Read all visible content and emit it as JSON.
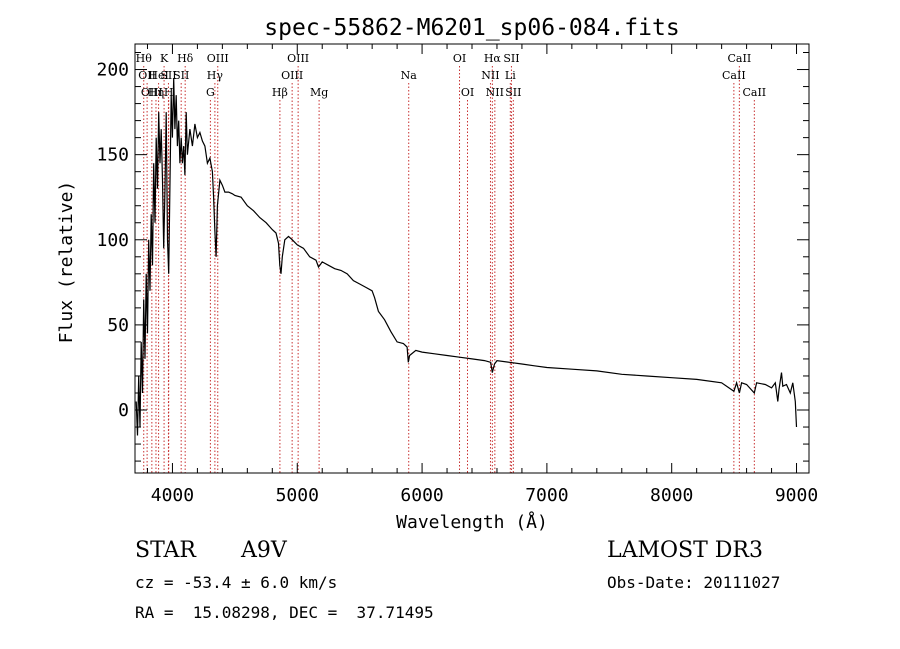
{
  "chart_data": {
    "type": "line",
    "title": "spec-55862-M6201_sp06-084.fits",
    "xlabel": "Wavelength (Å)",
    "ylabel": "Flux (relative)",
    "xlim": [
      3700,
      9100
    ],
    "ylim": [
      -37,
      215
    ],
    "xticks": [
      4000,
      5000,
      6000,
      7000,
      8000,
      9000
    ],
    "yticks": [
      0,
      50,
      100,
      150,
      200
    ],
    "x_minor_step": 200,
    "y_minor_step": 10,
    "grid": false,
    "line_color": "#000000",
    "marker_color": "#c83232",
    "series": [
      {
        "name": "spectrum",
        "points": [
          [
            3710,
            5
          ],
          [
            3720,
            -15
          ],
          [
            3730,
            20
          ],
          [
            3740,
            -10
          ],
          [
            3750,
            40
          ],
          [
            3760,
            10
          ],
          [
            3770,
            65
          ],
          [
            3780,
            30
          ],
          [
            3790,
            80
          ],
          [
            3800,
            45
          ],
          [
            3810,
            100
          ],
          [
            3820,
            70
          ],
          [
            3830,
            115
          ],
          [
            3840,
            85
          ],
          [
            3850,
            145
          ],
          [
            3860,
            110
          ],
          [
            3870,
            160
          ],
          [
            3880,
            130
          ],
          [
            3890,
            175
          ],
          [
            3900,
            145
          ],
          [
            3910,
            165
          ],
          [
            3920,
            135
          ],
          [
            3930,
            95
          ],
          [
            3940,
            130
          ],
          [
            3950,
            175
          ],
          [
            3960,
            100
          ],
          [
            3970,
            80
          ],
          [
            3980,
            130
          ],
          [
            3990,
            185
          ],
          [
            4000,
            160
          ],
          [
            4010,
            195
          ],
          [
            4020,
            165
          ],
          [
            4030,
            185
          ],
          [
            4040,
            155
          ],
          [
            4050,
            170
          ],
          [
            4060,
            145
          ],
          [
            4070,
            160
          ],
          [
            4080,
            145
          ],
          [
            4090,
            155
          ],
          [
            4100,
            138
          ],
          [
            4110,
            175
          ],
          [
            4120,
            150
          ],
          [
            4140,
            165
          ],
          [
            4160,
            155
          ],
          [
            4180,
            168
          ],
          [
            4200,
            160
          ],
          [
            4220,
            163
          ],
          [
            4240,
            158
          ],
          [
            4260,
            155
          ],
          [
            4280,
            145
          ],
          [
            4300,
            148
          ],
          [
            4320,
            140
          ],
          [
            4330,
            125
          ],
          [
            4340,
            105
          ],
          [
            4350,
            90
          ],
          [
            4360,
            120
          ],
          [
            4380,
            135
          ],
          [
            4400,
            132
          ],
          [
            4420,
            128
          ],
          [
            4450,
            128
          ],
          [
            4480,
            127
          ],
          [
            4500,
            126
          ],
          [
            4550,
            125
          ],
          [
            4600,
            120
          ],
          [
            4650,
            117
          ],
          [
            4700,
            113
          ],
          [
            4750,
            110
          ],
          [
            4800,
            106
          ],
          [
            4830,
            104
          ],
          [
            4850,
            98
          ],
          [
            4860,
            85
          ],
          [
            4870,
            80
          ],
          [
            4880,
            90
          ],
          [
            4900,
            100
          ],
          [
            4930,
            102
          ],
          [
            4960,
            100
          ],
          [
            5000,
            97
          ],
          [
            5050,
            95
          ],
          [
            5100,
            90
          ],
          [
            5150,
            88
          ],
          [
            5170,
            84
          ],
          [
            5190,
            86
          ],
          [
            5200,
            87
          ],
          [
            5250,
            85
          ],
          [
            5300,
            83
          ],
          [
            5350,
            82
          ],
          [
            5400,
            80
          ],
          [
            5450,
            76
          ],
          [
            5500,
            74
          ],
          [
            5550,
            72
          ],
          [
            5600,
            70
          ],
          [
            5620,
            66
          ],
          [
            5650,
            58
          ],
          [
            5700,
            53
          ],
          [
            5750,
            46
          ],
          [
            5800,
            40
          ],
          [
            5850,
            39
          ],
          [
            5880,
            37
          ],
          [
            5890,
            28
          ],
          [
            5900,
            32
          ],
          [
            5950,
            35
          ],
          [
            6000,
            34
          ],
          [
            6100,
            33
          ],
          [
            6200,
            32
          ],
          [
            6300,
            31
          ],
          [
            6400,
            30
          ],
          [
            6500,
            29
          ],
          [
            6550,
            28
          ],
          [
            6563,
            22
          ],
          [
            6580,
            27
          ],
          [
            6600,
            29
          ],
          [
            6700,
            28
          ],
          [
            6800,
            27
          ],
          [
            6900,
            26
          ],
          [
            7000,
            25
          ],
          [
            7200,
            24
          ],
          [
            7400,
            23
          ],
          [
            7600,
            21
          ],
          [
            7800,
            20
          ],
          [
            8000,
            19
          ],
          [
            8200,
            18
          ],
          [
            8400,
            16
          ],
          [
            8498,
            11
          ],
          [
            8520,
            16
          ],
          [
            8542,
            10
          ],
          [
            8560,
            16
          ],
          [
            8600,
            15
          ],
          [
            8662,
            10
          ],
          [
            8680,
            16
          ],
          [
            8750,
            15
          ],
          [
            8800,
            13
          ],
          [
            8830,
            16
          ],
          [
            8850,
            5
          ],
          [
            8860,
            12
          ],
          [
            8880,
            22
          ],
          [
            8890,
            14
          ],
          [
            8920,
            15
          ],
          [
            8950,
            10
          ],
          [
            8970,
            16
          ],
          [
            8990,
            5
          ],
          [
            9000,
            -10
          ]
        ]
      }
    ],
    "lines": [
      {
        "x": 3770,
        "row": 1,
        "label": "Hθ"
      },
      {
        "x": 3797,
        "row": 2,
        "label": "OII"
      },
      {
        "x": 3835,
        "row": 3,
        "label": "OIII"
      },
      {
        "x": 3868,
        "row": 3,
        "label": "Hη"
      },
      {
        "x": 3889,
        "row": 2,
        "label": "HeI"
      },
      {
        "x": 3933,
        "row": 1,
        "label": "K"
      },
      {
        "x": 3968,
        "row": 2,
        "label": "SII"
      },
      {
        "x": 3970,
        "row": 3,
        "label": "H"
      },
      {
        "x": 4102,
        "row": 1,
        "label": "Hδ"
      },
      {
        "x": 4070,
        "row": 2,
        "label": "SII"
      },
      {
        "x": 4304,
        "row": 3,
        "label": "G"
      },
      {
        "x": 4340,
        "row": 2,
        "label": "Hγ"
      },
      {
        "x": 4363,
        "row": 1,
        "label": "OIII"
      },
      {
        "x": 4861,
        "row": 3,
        "label": "Hβ"
      },
      {
        "x": 4959,
        "row": 2,
        "label": "OIII"
      },
      {
        "x": 5007,
        "row": 1,
        "label": "OIII"
      },
      {
        "x": 5175,
        "row": 3,
        "label": "Mg"
      },
      {
        "x": 5893,
        "row": 2,
        "label": "Na"
      },
      {
        "x": 6300,
        "row": 1,
        "label": "OI"
      },
      {
        "x": 6364,
        "row": 3,
        "label": "OI"
      },
      {
        "x": 6548,
        "row": 2,
        "label": "NII"
      },
      {
        "x": 6563,
        "row": 1,
        "label": "Hα"
      },
      {
        "x": 6583,
        "row": 3,
        "label": "NII"
      },
      {
        "x": 6707,
        "row": 2,
        "label": "Li"
      },
      {
        "x": 6716,
        "row": 1,
        "label": "SII"
      },
      {
        "x": 6731,
        "row": 3,
        "label": "SII"
      },
      {
        "x": 8498,
        "row": 2,
        "label": "CaII"
      },
      {
        "x": 8542,
        "row": 1,
        "label": "CaII"
      },
      {
        "x": 8662,
        "row": 3,
        "label": "CaII"
      }
    ]
  },
  "info": {
    "object_class": "STAR",
    "subclass": "A9V",
    "survey": "LAMOST DR3",
    "cz": "cz = -53.4 ± 6.0 km/s",
    "obs_date": "Obs-Date: 20111027",
    "radec": "RA =  15.08298, DEC =  37.71495"
  }
}
